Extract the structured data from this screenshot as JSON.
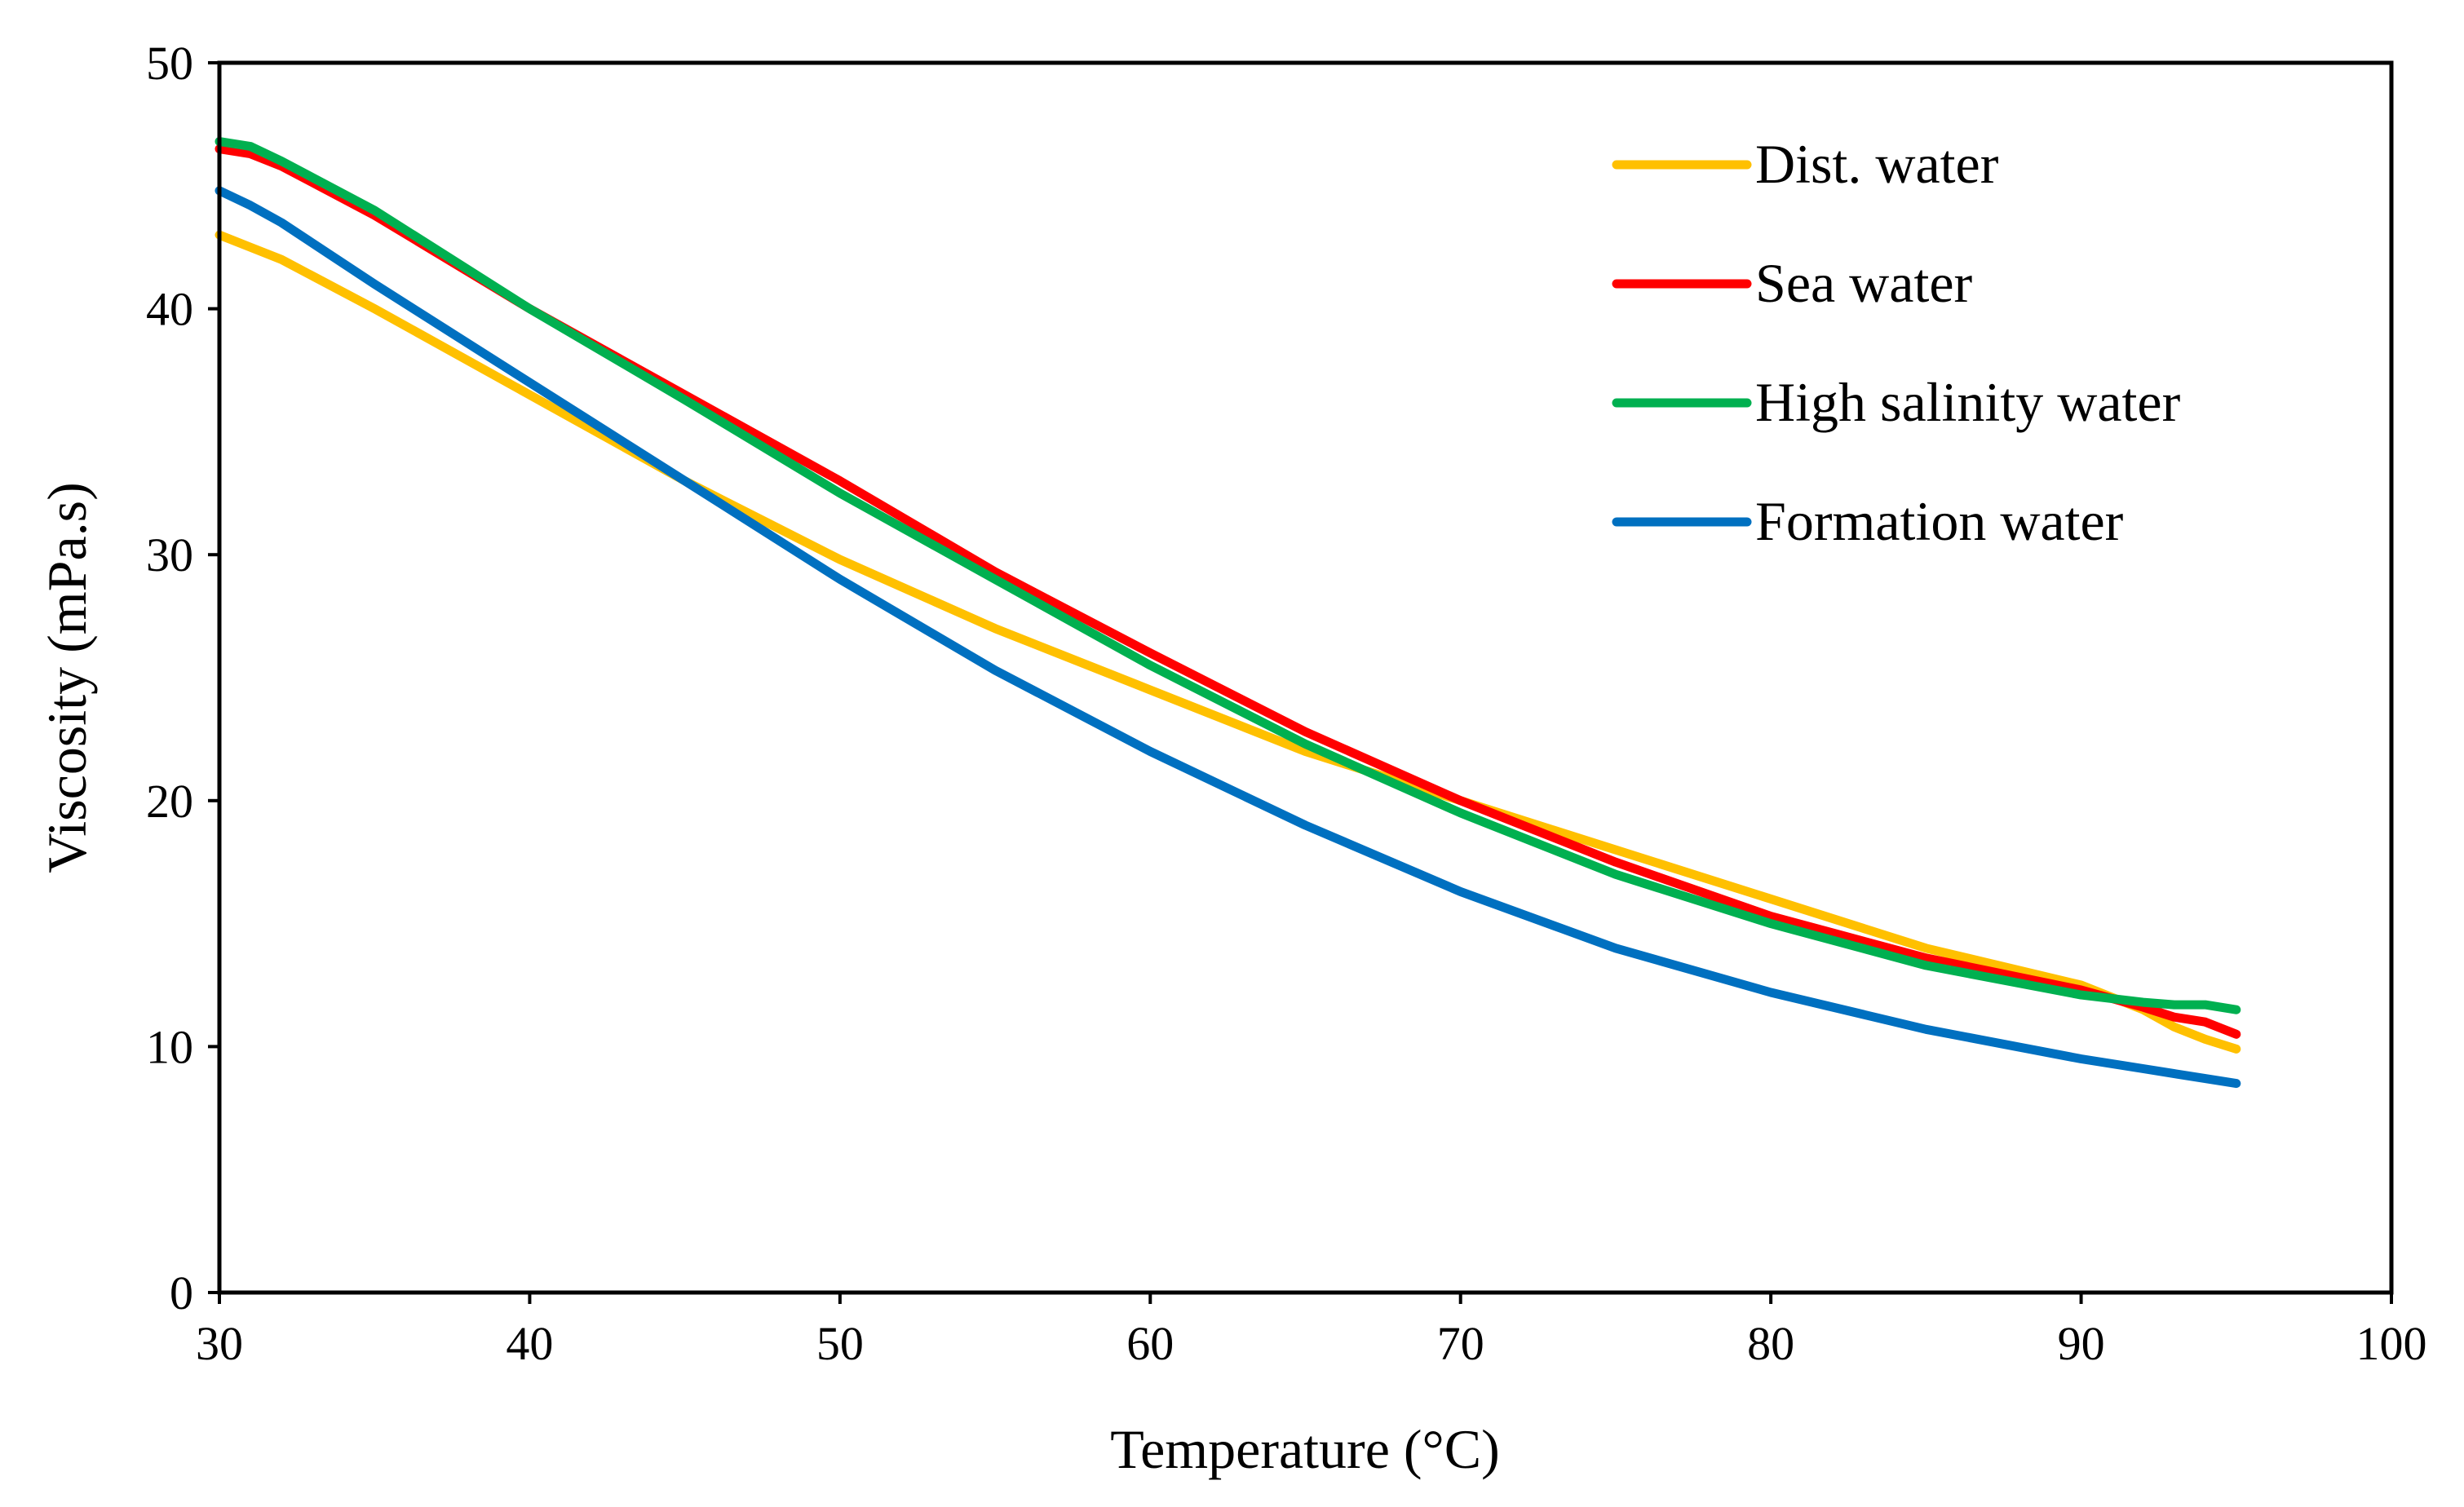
{
  "chart_data": {
    "type": "line",
    "title": "",
    "xlabel": "Temperature (°C)",
    "ylabel": "Viscosity (mPa.s)",
    "xlim": [
      30,
      100
    ],
    "ylim": [
      0,
      50
    ],
    "xticks": [
      "30",
      "40",
      "50",
      "60",
      "70",
      "80",
      "90",
      "100"
    ],
    "yticks": [
      "0",
      "10",
      "20",
      "30",
      "40",
      "50"
    ],
    "grid": false,
    "legend_position": "top-right",
    "x": [
      30,
      31,
      32,
      35,
      40,
      45,
      50,
      55,
      60,
      65,
      70,
      75,
      80,
      85,
      90,
      92,
      93,
      94,
      95
    ],
    "series": [
      {
        "name": "Dist. water",
        "color": "#FFC000",
        "values": [
          43.0,
          42.5,
          42.0,
          40.0,
          36.5,
          33.0,
          29.8,
          27.0,
          24.5,
          22.0,
          20.0,
          18.0,
          16.0,
          14.0,
          12.5,
          11.5,
          10.8,
          10.3,
          9.9
        ]
      },
      {
        "name": "Sea water",
        "color": "#FF0000",
        "values": [
          46.5,
          46.3,
          45.8,
          43.8,
          40.0,
          36.5,
          33.0,
          29.3,
          26.0,
          22.8,
          20.0,
          17.5,
          15.3,
          13.6,
          12.3,
          11.6,
          11.2,
          11.0,
          10.5
        ]
      },
      {
        "name": "High salinity water",
        "color": "#00B050",
        "values": [
          46.8,
          46.6,
          46.0,
          44.0,
          40.0,
          36.3,
          32.5,
          29.0,
          25.5,
          22.3,
          19.5,
          17.0,
          15.0,
          13.3,
          12.1,
          11.8,
          11.7,
          11.7,
          11.5
        ]
      },
      {
        "name": "Formation water",
        "color": "#0070C0",
        "values": [
          44.8,
          44.2,
          43.5,
          41.0,
          37.0,
          33.0,
          29.0,
          25.3,
          22.0,
          19.0,
          16.3,
          14.0,
          12.2,
          10.7,
          9.5,
          9.1,
          8.9,
          8.7,
          8.5
        ]
      }
    ]
  }
}
